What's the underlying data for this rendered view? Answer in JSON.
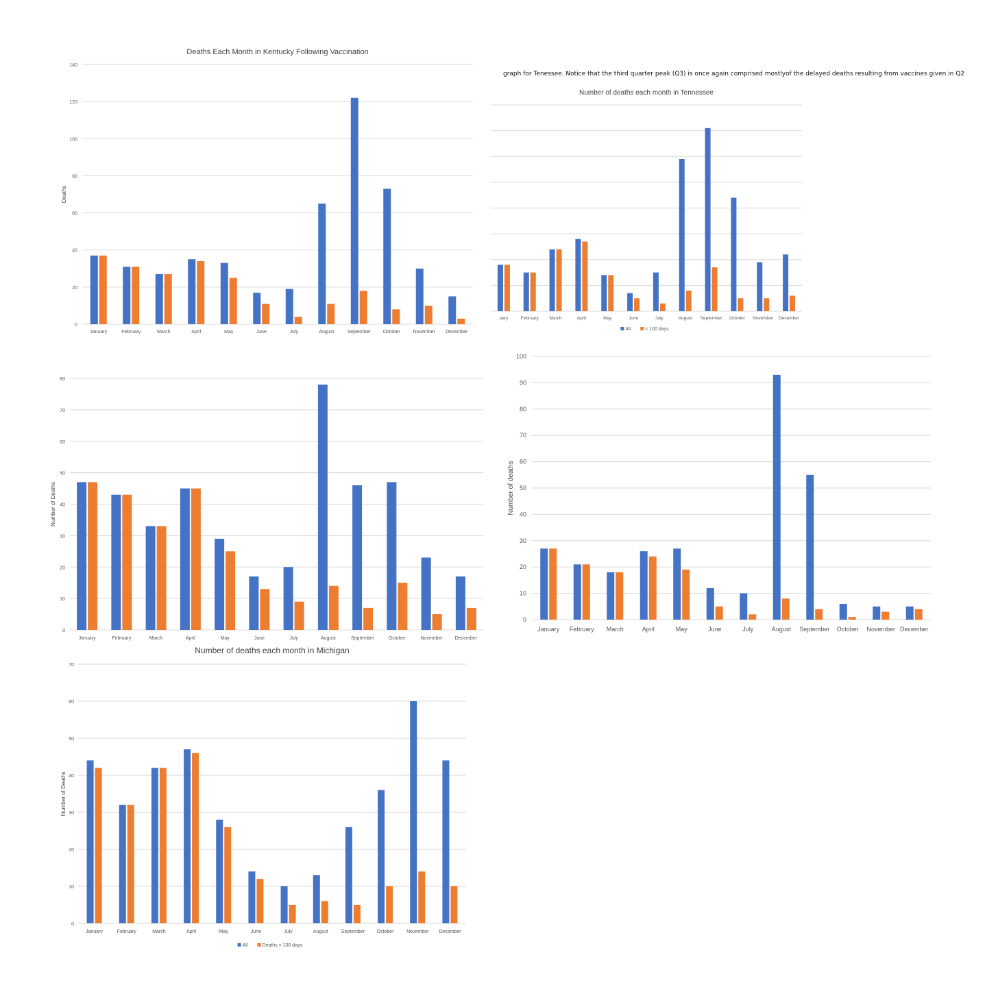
{
  "note": "graph for Tenessee. Notice that the third quarter peak (Q3) is once again comprised mostlyof the delayed deaths resulting from vaccines given in Q2",
  "colors": {
    "all": "#4472c4",
    "recent": "#ed7d31",
    "grid": "#d9d9d9"
  },
  "chart_data": [
    {
      "id": "kentucky",
      "type": "bar",
      "title": "Deaths Each Month in Kentucky Following Vaccination",
      "ylabel": "Deaths",
      "xlabel": "",
      "ylim": [
        0,
        140
      ],
      "ystep": 20,
      "show_y_ticks": true,
      "categories": [
        "January",
        "February",
        "March",
        "April",
        "May",
        "June",
        "July",
        "August",
        "September",
        "October",
        "November",
        "December"
      ],
      "series": [
        {
          "values": [
            37,
            31,
            27,
            35,
            33,
            17,
            19,
            65,
            122,
            73,
            30,
            15
          ]
        },
        {
          "values": [
            37,
            31,
            27,
            34,
            25,
            11,
            4,
            11,
            18,
            8,
            10,
            3
          ]
        }
      ]
    },
    {
      "id": "tennessee",
      "type": "bar",
      "title": "Number of deaths each month in Tennessee",
      "ylabel": "",
      "xlabel": "",
      "ylim": [
        0,
        80
      ],
      "ystep": 10,
      "show_y_ticks": false,
      "categories": [
        "January",
        "February",
        "March",
        "April",
        "May",
        "June",
        "July",
        "August",
        "September",
        "October",
        "November",
        "December"
      ],
      "category_display": [
        "uary",
        "February",
        "March",
        "April",
        "May",
        "June",
        "July",
        "August",
        "September",
        "October",
        "November",
        "December"
      ],
      "legend": {
        "position": "bottom",
        "entries": [
          "All",
          "< 100 days"
        ]
      },
      "series": [
        {
          "name": "All",
          "values": [
            18,
            15,
            24,
            28,
            14,
            7,
            15,
            59,
            71,
            44,
            19,
            22
          ]
        },
        {
          "name": "< 100 days",
          "values": [
            18,
            15,
            24,
            27,
            14,
            5,
            3,
            8,
            17,
            5,
            5,
            6
          ]
        }
      ]
    },
    {
      "id": "chart3",
      "type": "bar",
      "title": "",
      "ylabel": "Number of Deaths",
      "xlabel": "",
      "ylim": [
        0,
        80
      ],
      "ystep": 10,
      "show_y_ticks": true,
      "categories": [
        "January",
        "February",
        "March",
        "April",
        "May",
        "June",
        "July",
        "August",
        "September",
        "October",
        "November",
        "December"
      ],
      "series": [
        {
          "values": [
            47,
            43,
            33,
            45,
            29,
            17,
            20,
            78,
            46,
            47,
            23,
            17
          ]
        },
        {
          "values": [
            47,
            43,
            33,
            45,
            25,
            13,
            9,
            14,
            7,
            15,
            5,
            7
          ]
        }
      ]
    },
    {
      "id": "chart4",
      "type": "bar",
      "title": "",
      "ylabel": "Number of deaths",
      "xlabel": "",
      "ylim": [
        0,
        100
      ],
      "ystep": 10,
      "show_y_ticks": true,
      "categories": [
        "January",
        "February",
        "March",
        "April",
        "May",
        "June",
        "July",
        "August",
        "September",
        "October",
        "November",
        "December"
      ],
      "series": [
        {
          "values": [
            27,
            21,
            18,
            26,
            27,
            12,
            10,
            93,
            55,
            6,
            5,
            5
          ]
        },
        {
          "values": [
            27,
            21,
            18,
            24,
            19,
            5,
            2,
            8,
            4,
            1,
            3,
            4
          ]
        }
      ]
    },
    {
      "id": "michigan",
      "type": "bar",
      "title": "Number of deaths each month in Michigan",
      "ylabel": "Number of Deaths",
      "xlabel": "",
      "ylim": [
        0,
        70
      ],
      "ystep": 10,
      "show_y_ticks": true,
      "categories": [
        "January",
        "February",
        "March",
        "April",
        "May",
        "June",
        "July",
        "August",
        "September",
        "October",
        "November",
        "December"
      ],
      "legend": {
        "position": "bottom",
        "entries": [
          "All",
          "Deaths < 100 days"
        ]
      },
      "series": [
        {
          "name": "All",
          "values": [
            44,
            32,
            42,
            47,
            28,
            14,
            10,
            13,
            26,
            36,
            60,
            44
          ]
        },
        {
          "name": "Deaths < 100 days",
          "values": [
            42,
            32,
            42,
            46,
            26,
            12,
            5,
            6,
            5,
            10,
            14,
            10
          ]
        }
      ]
    }
  ]
}
